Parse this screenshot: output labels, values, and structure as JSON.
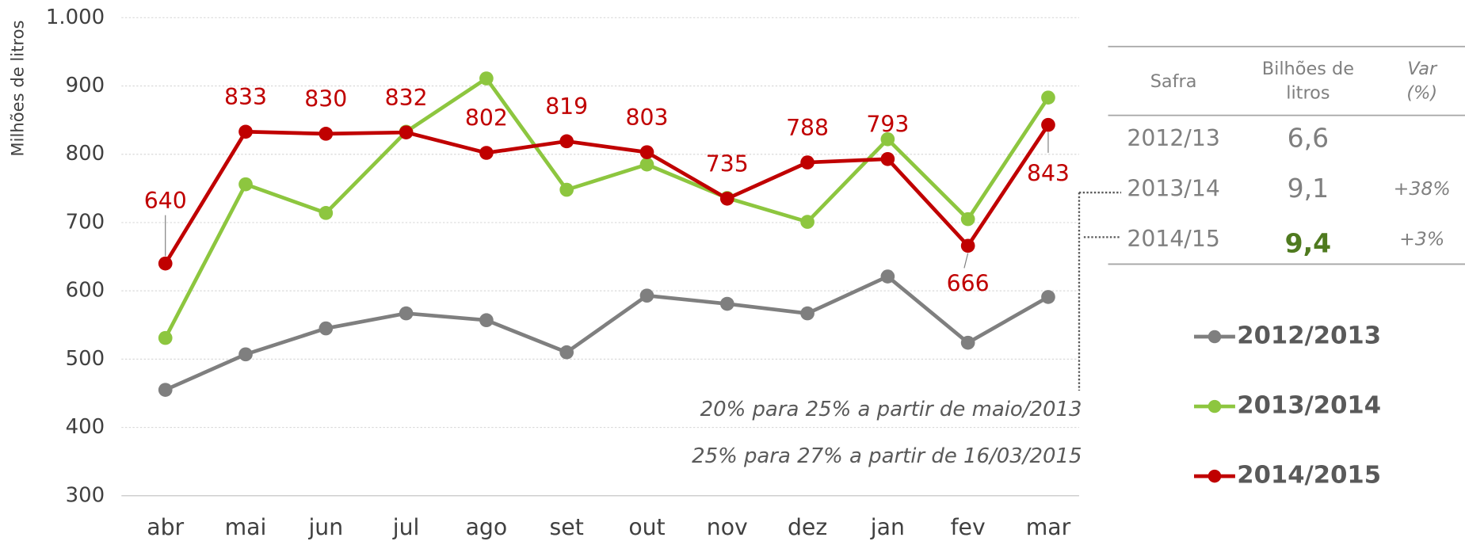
{
  "chart_data": {
    "type": "line",
    "y_label": "Milhões de litros",
    "categories": [
      "abr",
      "mai",
      "jun",
      "jul",
      "ago",
      "set",
      "out",
      "nov",
      "dez",
      "jan",
      "fev",
      "mar"
    ],
    "series": [
      {
        "name": "2012/2013",
        "color": "#7f7f7f",
        "values": [
          455,
          507,
          545,
          567,
          557,
          510,
          593,
          581,
          567,
          621,
          524,
          591
        ]
      },
      {
        "name": "2013/2014",
        "color": "#8dc63f",
        "values": [
          531,
          756,
          714,
          833,
          911,
          748,
          785,
          736,
          701,
          822,
          705,
          883
        ]
      },
      {
        "name": "2014/2015",
        "color": "#c00000",
        "values": [
          640,
          833,
          830,
          832,
          802,
          819,
          803,
          735,
          788,
          793,
          666,
          843
        ],
        "data_labels": true
      }
    ],
    "ylim": [
      300,
      1000
    ],
    "yticks": [
      300,
      400,
      500,
      600,
      700,
      800,
      900,
      {
        "value": 1000,
        "label": "1.000"
      }
    ],
    "grid": true,
    "annotations": [
      "20% para 25% a partir de maio/2013",
      "25% para 27% a partir de 16/03/2015"
    ]
  },
  "table": {
    "header": [
      "Safra",
      "Bilhões de litros",
      "Var (%)"
    ],
    "rows": [
      [
        "2012/13",
        "6,6",
        ""
      ],
      [
        "2013/14",
        "9,1",
        "+38%"
      ],
      [
        "2014/15",
        "9,4",
        "+3%"
      ]
    ]
  }
}
